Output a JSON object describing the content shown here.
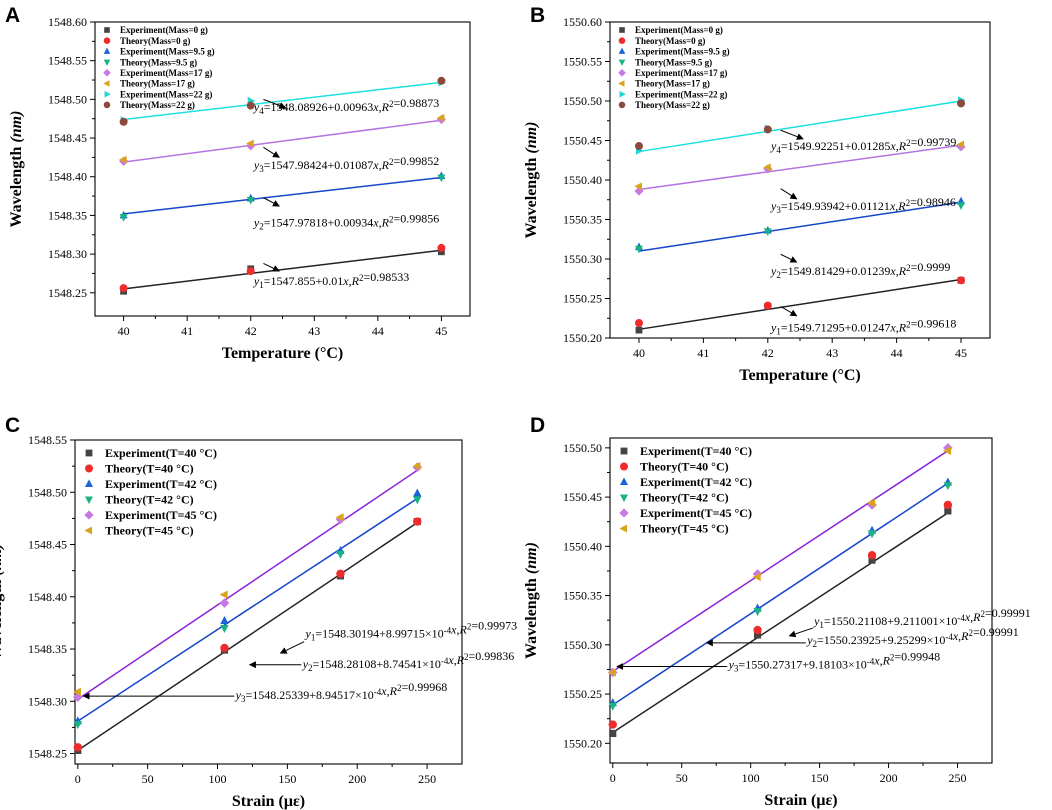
{
  "figure": {
    "colors": {
      "black": "#444444",
      "red": "#ee2c2c",
      "blue": "#1b63d6",
      "green": "#19b382",
      "violet": "#c678e3",
      "gold": "#d9a41c",
      "cyan": "#1fd6d6",
      "brown": "#8c4a3c",
      "line_black": "#222222",
      "line_blue": "#1346c8",
      "line_violet": "#b574e2",
      "line_cyan": "#1ee0e0",
      "line_purple": "#8a1fd8"
    }
  },
  "chart_data": [
    {
      "panel": "A",
      "type": "scatter",
      "xlabel": "Temperature (°C)",
      "ylabel": "Wavelength",
      "yunit": "(nm)",
      "xlim": [
        39.55,
        45.45
      ],
      "ylim": [
        1548.22,
        1548.6
      ],
      "xticks": [
        40,
        41,
        42,
        43,
        44,
        45
      ],
      "yticks": [
        1548.25,
        1548.3,
        1548.35,
        1548.4,
        1548.45,
        1548.5,
        1548.55,
        1548.6
      ],
      "ydecimals": 2,
      "legend_position": "top-left",
      "legend_size": "small",
      "series": [
        {
          "name": "Experiment(Mass=0 g)",
          "marker": "square",
          "color": "black",
          "x": [
            40,
            42,
            45
          ],
          "y": [
            1548.252,
            1548.281,
            1548.303
          ]
        },
        {
          "name": "Theory(Mass=0 g)",
          "marker": "circle",
          "color": "red",
          "x": [
            40,
            42,
            45
          ],
          "y": [
            1548.256,
            1548.278,
            1548.308
          ]
        },
        {
          "name": "Experiment(Mass=9.5 g)",
          "marker": "triangle-up",
          "color": "blue",
          "x": [
            40,
            42,
            45
          ],
          "y": [
            1548.35,
            1548.372,
            1548.401
          ]
        },
        {
          "name": "Theory(Mass=9.5 g)",
          "marker": "triangle-down",
          "color": "green",
          "x": [
            40,
            42,
            45
          ],
          "y": [
            1548.348,
            1548.37,
            1548.399
          ]
        },
        {
          "name": "Experiment(Mass=17 g)",
          "marker": "diamond",
          "color": "violet",
          "x": [
            40,
            42,
            45
          ],
          "y": [
            1548.42,
            1548.44,
            1548.474
          ]
        },
        {
          "name": "Theory(Mass=17 g)",
          "marker": "triangle-left",
          "color": "gold",
          "x": [
            40,
            42,
            45
          ],
          "y": [
            1548.422,
            1548.443,
            1548.476
          ]
        },
        {
          "name": "Experiment(Mass=22 g)",
          "marker": "triangle-right",
          "color": "cyan",
          "x": [
            40,
            42,
            45
          ],
          "y": [
            1548.473,
            1548.498,
            1548.522
          ]
        },
        {
          "name": "Theory(Mass=22 g)",
          "marker": "circle",
          "color": "brown",
          "x": [
            40,
            42,
            45
          ],
          "y": [
            1548.471,
            1548.492,
            1548.524
          ]
        }
      ],
      "fit_lines": [
        {
          "color": "line_black",
          "x": [
            40,
            45
          ],
          "y": [
            1548.255,
            1548.305
          ]
        },
        {
          "color": "line_blue",
          "x": [
            40,
            45
          ],
          "y": [
            1548.352,
            1548.399
          ]
        },
        {
          "color": "line_violet",
          "x": [
            40,
            45
          ],
          "y": [
            1548.419,
            1548.473
          ]
        },
        {
          "color": "line_cyan",
          "x": [
            40,
            45
          ],
          "y": [
            1548.474,
            1548.522
          ]
        }
      ],
      "annotations": [
        {
          "sub": "4",
          "text": "=1548.08926+0.00963x,R²=0.98873",
          "x": 42.05,
          "y": 1548.485,
          "ax": 42.55,
          "ay": 1548.489,
          "tx": 42.2,
          "ty": 1548.5,
          "arrow": "diag"
        },
        {
          "sub": "3",
          "text": "=1547.98424+0.01087x,R²=0.99852",
          "x": 42.05,
          "y": 1548.41,
          "ax": 42.45,
          "ay": 1548.425,
          "tx": 42.2,
          "ty": 1548.438,
          "arrow": "diag"
        },
        {
          "sub": "2",
          "text": "=1547.97818+0.00934x,R²=0.99856",
          "x": 42.05,
          "y": 1548.336,
          "ax": 42.45,
          "ay": 1548.362,
          "tx": 42.2,
          "ty": 1548.373,
          "arrow": "diag"
        },
        {
          "sub": "1",
          "text": "=1547.855+0.01x,R²=0.98533",
          "x": 42.05,
          "y": 1548.26,
          "ax": 42.45,
          "ay": 1548.278,
          "tx": 42.2,
          "ty": 1548.288,
          "arrow": "diag"
        }
      ]
    },
    {
      "panel": "B",
      "type": "scatter",
      "xlabel": "Temperature (°C)",
      "ylabel": "Wavelength",
      "yunit": "(nm)",
      "xlim": [
        39.55,
        45.45
      ],
      "ylim": [
        1550.2,
        1550.6
      ],
      "xticks": [
        40,
        41,
        42,
        43,
        44,
        45
      ],
      "yticks": [
        1550.2,
        1550.25,
        1550.3,
        1550.35,
        1550.4,
        1550.45,
        1550.5,
        1550.55,
        1550.6
      ],
      "ydecimals": 2,
      "legend_position": "top-left",
      "legend_size": "small",
      "series": [
        {
          "name": "Experiment(Mass=0 g)",
          "marker": "square",
          "color": "black",
          "x": [
            40,
            42,
            45
          ],
          "y": [
            1550.21,
            1550.24,
            1550.273
          ]
        },
        {
          "name": "Theory(Mass=0 g)",
          "marker": "circle",
          "color": "red",
          "x": [
            40,
            42,
            45
          ],
          "y": [
            1550.219,
            1550.241,
            1550.273
          ]
        },
        {
          "name": "Experiment(Mass=9.5 g)",
          "marker": "triangle-up",
          "color": "blue",
          "x": [
            40,
            42,
            45
          ],
          "y": [
            1550.315,
            1550.336,
            1550.373
          ]
        },
        {
          "name": "Theory(Mass=9.5 g)",
          "marker": "triangle-down",
          "color": "green",
          "x": [
            40,
            42,
            45
          ],
          "y": [
            1550.313,
            1550.335,
            1550.368
          ]
        },
        {
          "name": "Experiment(Mass=17 g)",
          "marker": "diamond",
          "color": "violet",
          "x": [
            40,
            42,
            45
          ],
          "y": [
            1550.386,
            1550.414,
            1550.442
          ]
        },
        {
          "name": "Theory(Mass=17 g)",
          "marker": "triangle-left",
          "color": "gold",
          "x": [
            40,
            42,
            45
          ],
          "y": [
            1550.392,
            1550.416,
            1550.445
          ]
        },
        {
          "name": "Experiment(Mass=22 g)",
          "marker": "triangle-right",
          "color": "cyan",
          "x": [
            40,
            42,
            45
          ],
          "y": [
            1550.437,
            1550.465,
            1550.501
          ]
        },
        {
          "name": "Theory(Mass=22 g)",
          "marker": "circle",
          "color": "brown",
          "x": [
            40,
            42,
            45
          ],
          "y": [
            1550.443,
            1550.464,
            1550.497
          ]
        }
      ],
      "fit_lines": [
        {
          "color": "line_black",
          "x": [
            40,
            45
          ],
          "y": [
            1550.211,
            1550.274
          ]
        },
        {
          "color": "line_blue",
          "x": [
            40,
            45
          ],
          "y": [
            1550.31,
            1550.372
          ]
        },
        {
          "color": "line_violet",
          "x": [
            40,
            45
          ],
          "y": [
            1550.388,
            1550.444
          ]
        },
        {
          "color": "line_cyan",
          "x": [
            40,
            45
          ],
          "y": [
            1550.436,
            1550.5
          ]
        }
      ],
      "annotations": [
        {
          "sub": "4",
          "text": "=1549.92251+0.01285x,R²=0.99739",
          "x": 42.05,
          "y": 1550.438,
          "ax": 42.55,
          "ay": 1550.452,
          "tx": 42.2,
          "ty": 1550.463,
          "arrow": "diag"
        },
        {
          "sub": "3",
          "text": "=1549.93942+0.01121x,R²=0.98946",
          "x": 42.05,
          "y": 1550.362,
          "ax": 42.45,
          "ay": 1550.376,
          "tx": 42.2,
          "ty": 1550.389,
          "arrow": "diag"
        },
        {
          "sub": "2",
          "text": "=1549.81429+0.01239x,R²=0.9999",
          "x": 42.05,
          "y": 1550.28,
          "ax": 42.45,
          "ay": 1550.296,
          "tx": 42.2,
          "ty": 1550.306,
          "arrow": "diag"
        },
        {
          "sub": "1",
          "text": "=1549.71295+0.01247x,R²=0.99618",
          "x": 42.05,
          "y": 1550.208,
          "ax": 42.45,
          "ay": 1550.228,
          "tx": 42.2,
          "ty": 1550.24,
          "arrow": "diag"
        }
      ]
    },
    {
      "panel": "C",
      "type": "scatter",
      "xlabel": "Strain (με)",
      "ylabel": "Wavelength",
      "yunit": "(nm)",
      "xlim": [
        -2,
        275
      ],
      "ylim": [
        1548.24,
        1548.55
      ],
      "xticks": [
        0,
        50,
        100,
        150,
        200,
        250
      ],
      "yticks": [
        1548.25,
        1548.3,
        1548.35,
        1548.4,
        1548.45,
        1548.5,
        1548.55
      ],
      "ydecimals": 2,
      "legend_position": "top-left",
      "legend_size": "large",
      "series": [
        {
          "name": "Experiment(T=40 °C)",
          "marker": "square",
          "color": "black",
          "x": [
            0,
            105,
            188,
            243
          ],
          "y": [
            1548.253,
            1548.349,
            1548.42,
            1548.472
          ]
        },
        {
          "name": "Theory(T=40 °C)",
          "marker": "circle",
          "color": "red",
          "x": [
            0,
            105,
            188,
            243
          ],
          "y": [
            1548.256,
            1548.351,
            1548.422,
            1548.472
          ]
        },
        {
          "name": "Experiment(T=42 °C)",
          "marker": "triangle-up",
          "color": "blue",
          "x": [
            0,
            105,
            188,
            243
          ],
          "y": [
            1548.281,
            1548.377,
            1548.444,
            1548.499
          ]
        },
        {
          "name": "Theory(T=42 °C)",
          "marker": "triangle-down",
          "color": "green",
          "x": [
            0,
            105,
            188,
            243
          ],
          "y": [
            1548.278,
            1548.37,
            1548.441,
            1548.493
          ]
        },
        {
          "name": "Experiment(T=45 °C)",
          "marker": "diamond",
          "color": "violet",
          "x": [
            0,
            105,
            188,
            243
          ],
          "y": [
            1548.304,
            1548.394,
            1548.474,
            1548.524
          ]
        },
        {
          "name": "Theory(T=45 °C)",
          "marker": "triangle-left",
          "color": "gold",
          "x": [
            0,
            105,
            188,
            243
          ],
          "y": [
            1548.309,
            1548.402,
            1548.476,
            1548.525
          ]
        }
      ],
      "fit_lines": [
        {
          "color": "line_black",
          "x": [
            0,
            243
          ],
          "y": [
            1548.253,
            1548.471
          ]
        },
        {
          "color": "line_blue",
          "x": [
            0,
            243
          ],
          "y": [
            1548.281,
            1548.494
          ]
        },
        {
          "color": "line_purple",
          "x": [
            0,
            243
          ],
          "y": [
            1548.302,
            1548.521
          ]
        }
      ],
      "annotations": [
        {
          "sub": "1",
          "text": "=1548.30194+8.99715×10⁻⁴x,R²=0.99973",
          "x": 163,
          "y": 1548.361,
          "ax": 145,
          "ay": 1548.346,
          "tx": 162,
          "ty": 1548.357,
          "arrow": "diag"
        },
        {
          "sub": "2",
          "text": "=1548.28108+8.74541×10⁻⁴x,R²=0.99836",
          "x": 161,
          "y": 1548.332,
          "ax": 123,
          "ay": 1548.335,
          "tx": 160,
          "ty": 1548.335,
          "arrow": "horiz"
        },
        {
          "sub": "3",
          "text": "=1548.25339+8.94517×10⁻⁴x,R²=0.99968",
          "x": 113,
          "y": 1548.302,
          "ax": 4,
          "ay": 1548.305,
          "tx": 112,
          "ty": 1548.305,
          "arrow": "horiz"
        }
      ]
    },
    {
      "panel": "D",
      "type": "scatter",
      "xlabel": "Strain (με)",
      "ylabel": "Wavelength",
      "yunit": "(nm)",
      "xlim": [
        -2,
        275
      ],
      "ylim": [
        1550.18,
        1550.51
      ],
      "xticks": [
        0,
        50,
        100,
        150,
        200,
        250
      ],
      "yticks": [
        1550.2,
        1550.25,
        1550.3,
        1550.35,
        1550.4,
        1550.45,
        1550.5
      ],
      "ydecimals": 2,
      "legend_position": "top-left",
      "legend_size": "large",
      "series": [
        {
          "name": "Experiment(T=40 °C)",
          "marker": "square",
          "color": "black",
          "x": [
            0,
            105,
            188,
            243
          ],
          "y": [
            1550.21,
            1550.31,
            1550.386,
            1550.436
          ]
        },
        {
          "name": "Theory(T=40 °C)",
          "marker": "circle",
          "color": "red",
          "x": [
            0,
            105,
            188,
            243
          ],
          "y": [
            1550.219,
            1550.315,
            1550.391,
            1550.442
          ]
        },
        {
          "name": "Experiment(T=42 °C)",
          "marker": "triangle-up",
          "color": "blue",
          "x": [
            0,
            105,
            188,
            243
          ],
          "y": [
            1550.241,
            1550.337,
            1550.416,
            1550.465
          ]
        },
        {
          "name": "Theory(T=42 °C)",
          "marker": "triangle-down",
          "color": "green",
          "x": [
            0,
            105,
            188,
            243
          ],
          "y": [
            1550.238,
            1550.334,
            1550.413,
            1550.462
          ]
        },
        {
          "name": "Experiment(T=45 °C)",
          "marker": "diamond",
          "color": "violet",
          "x": [
            0,
            105,
            188,
            243
          ],
          "y": [
            1550.272,
            1550.372,
            1550.442,
            1550.5
          ]
        },
        {
          "name": "Theory(T=45 °C)",
          "marker": "triangle-left",
          "color": "gold",
          "x": [
            0,
            105,
            188,
            243
          ],
          "y": [
            1550.272,
            1550.369,
            1550.444,
            1550.497
          ]
        }
      ],
      "fit_lines": [
        {
          "color": "line_black",
          "x": [
            0,
            243
          ],
          "y": [
            1550.211,
            1550.434
          ]
        },
        {
          "color": "line_blue",
          "x": [
            0,
            243
          ],
          "y": [
            1550.239,
            1550.464
          ]
        },
        {
          "color": "line_purple",
          "x": [
            0,
            243
          ],
          "y": [
            1550.273,
            1550.497
          ]
        }
      ],
      "annotations": [
        {
          "sub": "1",
          "text": "=1550.21108+9.211001×10⁻⁴x,R²=0.99991",
          "x": 146,
          "y": 1550.32,
          "ax": 128,
          "ay": 1550.309,
          "tx": 145,
          "ty": 1550.317,
          "arrow": "diag"
        },
        {
          "sub": "2",
          "text": "=1550.23925+9.25299×10⁻⁴x,R²=0.99991",
          "x": 141,
          "y": 1550.301,
          "ax": 68,
          "ay": 1550.302,
          "tx": 140,
          "ty": 1550.302,
          "arrow": "horiz"
        },
        {
          "sub": "3",
          "text": "=1550.27317+9.18103×10⁻⁴x,R²=0.99948",
          "x": 84,
          "y": 1550.276,
          "ax": 3,
          "ay": 1550.278,
          "tx": 83,
          "ty": 1550.278,
          "arrow": "horiz"
        }
      ]
    }
  ]
}
